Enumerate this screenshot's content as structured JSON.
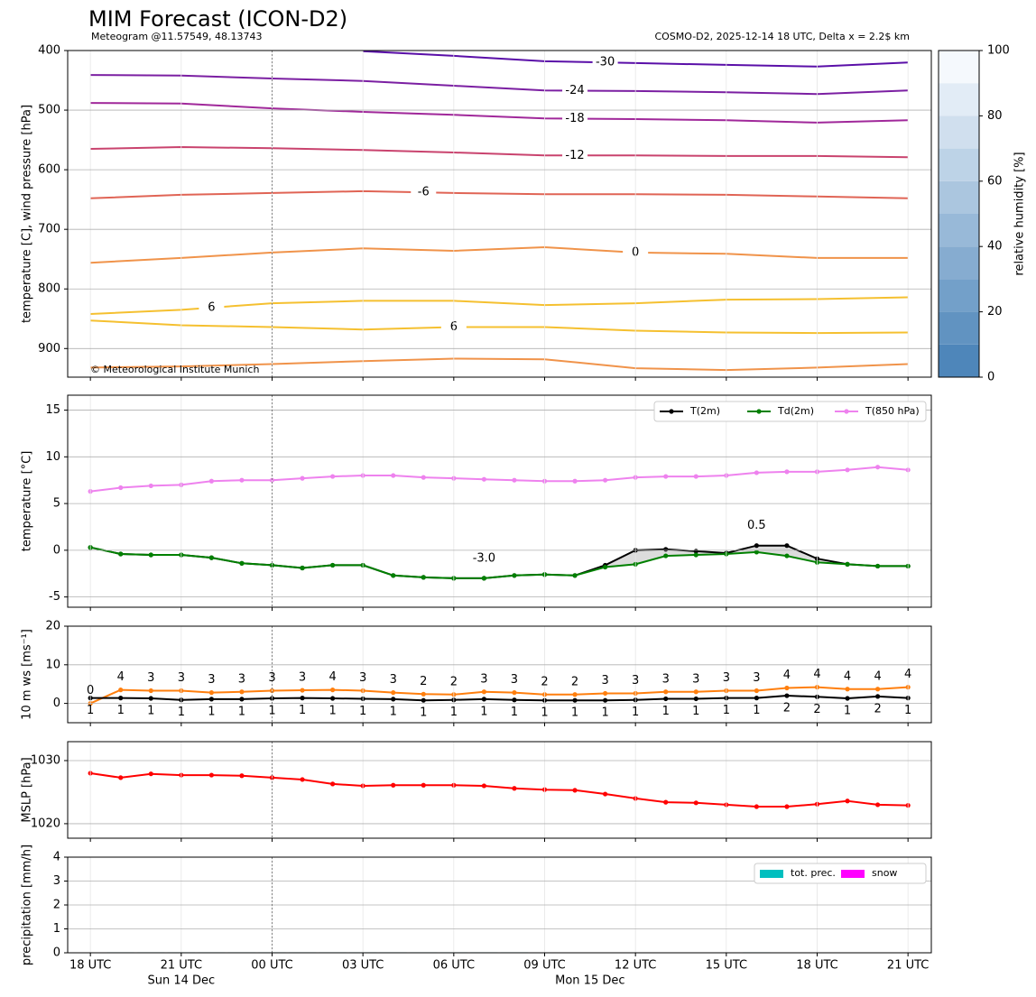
{
  "chart_data": [
    {
      "type": "contour",
      "title": "MIM Forecast (ICON-D2)",
      "subtitle": "Meteogram @11.57549, 48.13743",
      "info": "COSMO-D2, 2025-12-14 18 UTC, Delta x = 2.2$ km",
      "credit": "© Meteorological Institute Munich",
      "ylabel": "temperature [C], wind pressure [hPa]",
      "xlim": [
        -0.75,
        27.77
      ],
      "xticks": [
        0,
        3,
        6,
        9,
        12,
        15,
        18,
        21,
        24,
        27
      ],
      "ylim": [
        400,
        948
      ],
      "y_inverted": true,
      "yticks": [
        400,
        500,
        600,
        700,
        800,
        900
      ],
      "grid": true,
      "vline": 6,
      "contours": [
        {
          "level": -30,
          "color": "#5a0fa8",
          "x": [
            9,
            12,
            15,
            18,
            21,
            24,
            27
          ],
          "values": [
            401,
            409,
            418,
            421,
            424,
            427,
            420
          ]
        },
        {
          "level": -24,
          "color": "#7b1fa2",
          "x": [
            0,
            3,
            6,
            9,
            12,
            15,
            18,
            21,
            24,
            27
          ],
          "values": [
            441,
            442,
            447,
            451,
            459,
            467,
            468,
            470,
            473,
            467
          ]
        },
        {
          "level": -18,
          "color": "#a0289a",
          "x": [
            0,
            3,
            6,
            9,
            12,
            15,
            18,
            21,
            24,
            27
          ],
          "values": [
            488,
            489,
            497,
            503,
            508,
            514,
            515,
            517,
            521,
            517
          ]
        },
        {
          "level": -12,
          "color": "#c9436e",
          "x": [
            0,
            3,
            6,
            9,
            12,
            15,
            18,
            21,
            24,
            27
          ],
          "values": [
            565,
            562,
            564,
            567,
            571,
            576,
            576,
            577,
            577,
            579
          ]
        },
        {
          "level": -6,
          "color": "#e06455",
          "x": [
            0,
            3,
            6,
            9,
            12,
            15,
            18,
            21,
            24,
            27
          ],
          "values": [
            648,
            642,
            639,
            636,
            639,
            641,
            641,
            642,
            645,
            648
          ]
        },
        {
          "level": 0,
          "color": "#f0934a",
          "x": [
            0,
            3,
            6,
            9,
            12,
            15,
            18,
            21,
            24,
            27
          ],
          "values": [
            756,
            748,
            739,
            732,
            736,
            730,
            739,
            741,
            748,
            748
          ]
        },
        {
          "level": 6,
          "color": "#f5c030",
          "x": [
            0,
            3,
            6,
            9,
            12,
            15,
            18,
            21,
            24,
            27
          ],
          "values": [
            842,
            835,
            824,
            820,
            820,
            827,
            824,
            818,
            817,
            814
          ]
        },
        {
          "level": 6,
          "color": "#f5c030",
          "x": [
            0,
            3,
            6,
            9,
            12,
            15,
            18,
            21,
            24,
            27
          ],
          "values": [
            853,
            861,
            864,
            868,
            864,
            864,
            870,
            873,
            874,
            873
          ]
        },
        {
          "level": 0,
          "color": "#f0934a",
          "x": [
            0,
            3,
            6,
            9,
            12,
            15,
            18,
            21,
            24,
            27
          ],
          "values": [
            932,
            930,
            926,
            921,
            917,
            918,
            933,
            936,
            932,
            926
          ]
        }
      ],
      "colorbar": {
        "label": "relative humidity [%]",
        "lim": [
          0,
          100
        ],
        "ticks": [
          0,
          20,
          40,
          60,
          80,
          100
        ],
        "levels": [
          0,
          10,
          20,
          30,
          40,
          50,
          60,
          70,
          80,
          90,
          100
        ],
        "colors": [
          "#4e86ba",
          "#f5f9fd"
        ]
      }
    },
    {
      "type": "line",
      "ylabel": "temperature [°C]",
      "xlim": [
        -0.75,
        27.77
      ],
      "xticks": [
        0,
        3,
        6,
        9,
        12,
        15,
        18,
        21,
        24,
        27
      ],
      "ylim": [
        -6.1,
        16.6
      ],
      "yticks": [
        -5,
        0,
        5,
        10,
        15
      ],
      "grid": true,
      "vline": 6,
      "x": [
        0,
        1,
        2,
        3,
        4,
        5,
        6,
        7,
        8,
        9,
        10,
        11,
        12,
        13,
        14,
        15,
        16,
        17,
        18,
        19,
        20,
        21,
        22,
        23,
        24,
        25,
        26,
        27
      ],
      "series": [
        {
          "name": "T(2m)",
          "color": "#000000",
          "values": [
            0.3,
            -0.4,
            -0.5,
            -0.5,
            -0.8,
            -1.4,
            -1.6,
            -1.9,
            -1.6,
            -1.6,
            -2.7,
            -2.9,
            -3.0,
            -3.0,
            -2.7,
            -2.6,
            -2.7,
            -1.6,
            0.0,
            0.1,
            -0.1,
            -0.3,
            0.5,
            0.5,
            -0.9,
            -1.5,
            -1.7,
            -1.7
          ]
        },
        {
          "name": "Td(2m)",
          "color": "#008000",
          "values": [
            0.3,
            -0.4,
            -0.5,
            -0.5,
            -0.8,
            -1.4,
            -1.6,
            -1.9,
            -1.6,
            -1.6,
            -2.7,
            -2.9,
            -3.0,
            -3.0,
            -2.7,
            -2.6,
            -2.7,
            -1.8,
            -1.5,
            -0.6,
            -0.5,
            -0.4,
            -0.2,
            -0.6,
            -1.3,
            -1.5,
            -1.7,
            -1.7
          ]
        },
        {
          "name": "T(850 hPa)",
          "color": "#ee82ee",
          "values": [
            6.3,
            6.7,
            6.9,
            7.0,
            7.4,
            7.5,
            7.5,
            7.7,
            7.9,
            8.0,
            8.0,
            7.8,
            7.7,
            7.6,
            7.5,
            7.4,
            7.4,
            7.5,
            7.8,
            7.9,
            7.9,
            8.0,
            8.3,
            8.4,
            8.4,
            8.6,
            8.9,
            8.6
          ]
        }
      ],
      "fill_between": {
        "series": [
          0,
          1
        ],
        "color": "#dcdcdc"
      },
      "legend": "upper right",
      "annotations": [
        {
          "value": -3,
          "label": "-3.0",
          "x": 13,
          "color": "#0000ff"
        },
        {
          "value": 0.5,
          "x": 22,
          "color": "#ff0000"
        }
      ]
    },
    {
      "type": "line",
      "ylabel": "10 m ws [ms⁻¹]",
      "xlim": [
        -0.75,
        27.77
      ],
      "xticks": [
        0,
        3,
        6,
        9,
        12,
        15,
        18,
        21,
        24,
        27
      ],
      "ylim": [
        -5,
        20
      ],
      "yticks": [
        0,
        10,
        20
      ],
      "grid": true,
      "vline": 6,
      "x": [
        0,
        1,
        2,
        3,
        4,
        5,
        6,
        7,
        8,
        9,
        10,
        11,
        12,
        13,
        14,
        15,
        16,
        17,
        18,
        19,
        20,
        21,
        22,
        23,
        24,
        25,
        26,
        27
      ],
      "series": [
        {
          "color": "#ff7f0e",
          "values": [
            0,
            3.5,
            3.3,
            3.3,
            2.8,
            3.0,
            3.3,
            3.4,
            3.5,
            3.3,
            2.8,
            2.4,
            2.3,
            3.0,
            2.8,
            2.3,
            2.3,
            2.6,
            2.6,
            3.0,
            3.0,
            3.3,
            3.3,
            4.0,
            4.2,
            3.7,
            3.7,
            4.2
          ],
          "value_labels": [
            "0",
            "4",
            "3",
            "3",
            "3",
            "3",
            "3",
            "3",
            "4",
            "3",
            "3",
            "2",
            "2",
            "3",
            "3",
            "2",
            "2",
            "3",
            "3",
            "3",
            "3",
            "3",
            "3",
            "4",
            "4",
            "4",
            "4",
            "4"
          ]
        },
        {
          "color": "#000000",
          "values": [
            1.4,
            1.4,
            1.3,
            0.9,
            1.1,
            1.1,
            1.3,
            1.4,
            1.3,
            1.2,
            1.1,
            0.8,
            0.9,
            1.1,
            0.9,
            0.8,
            0.8,
            0.8,
            0.9,
            1.2,
            1.2,
            1.4,
            1.4,
            2.0,
            1.7,
            1.3,
            1.8,
            1.4
          ],
          "value_labels": [
            "1",
            "1",
            "1",
            "1",
            "1",
            "1",
            "1",
            "1",
            "1",
            "1",
            "1",
            "1",
            "1",
            "1",
            "1",
            "1",
            "1",
            "1",
            "1",
            "1",
            "1",
            "1",
            "1",
            "2",
            "2",
            "1",
            "2",
            "1"
          ]
        }
      ]
    },
    {
      "type": "line",
      "ylabel": "MSLP [hPa]",
      "xlim": [
        -0.75,
        27.77
      ],
      "xticks": [
        0,
        3,
        6,
        9,
        12,
        15,
        18,
        21,
        24,
        27
      ],
      "ylim": [
        1017.7,
        1033
      ],
      "yticks": [
        1020,
        1030
      ],
      "grid": true,
      "vline": 6,
      "x": [
        0,
        1,
        2,
        3,
        4,
        5,
        6,
        7,
        8,
        9,
        10,
        11,
        12,
        13,
        14,
        15,
        16,
        17,
        18,
        19,
        20,
        21,
        22,
        23,
        24,
        25,
        26,
        27
      ],
      "series": [
        {
          "color": "#ff0000",
          "values": [
            1028.0,
            1027.3,
            1027.9,
            1027.7,
            1027.7,
            1027.6,
            1027.3,
            1027.0,
            1026.3,
            1026.0,
            1026.1,
            1026.1,
            1026.1,
            1026.0,
            1025.6,
            1025.4,
            1025.3,
            1024.7,
            1024.0,
            1023.4,
            1023.3,
            1023.0,
            1022.7,
            1022.7,
            1023.1,
            1023.6,
            1023.0,
            1022.9
          ]
        }
      ]
    },
    {
      "type": "bar",
      "ylabel": "precipitation [mm/h]",
      "xlim": [
        -0.75,
        27.77
      ],
      "xticks": [
        {
          "value": 0,
          "label": "18 UTC"
        },
        {
          "value": 3,
          "label": "21 UTC"
        },
        {
          "value": 6,
          "label": "00 UTC"
        },
        {
          "value": 9,
          "label": "03 UTC"
        },
        {
          "value": 12,
          "label": "06 UTC"
        },
        {
          "value": 15,
          "label": "09 UTC"
        },
        {
          "value": 18,
          "label": "12 UTC"
        },
        {
          "value": 21,
          "label": "15 UTC"
        },
        {
          "value": 24,
          "label": "18 UTC"
        },
        {
          "value": 27,
          "label": "21 UTC"
        }
      ],
      "date_labels": [
        {
          "value": 3,
          "label": "Sun 14 Dec"
        },
        {
          "value": 16.5,
          "label": "Mon 15 Dec"
        }
      ],
      "ylim": [
        0,
        4
      ],
      "yticks": [
        0,
        1,
        2,
        3,
        4
      ],
      "grid": true,
      "vline": 6,
      "x": [
        0,
        1,
        2,
        3,
        4,
        5,
        6,
        7,
        8,
        9,
        10,
        11,
        12,
        13,
        14,
        15,
        16,
        17,
        18,
        19,
        20,
        21,
        22,
        23,
        24,
        25,
        26,
        27
      ],
      "series": [
        {
          "name": "tot. prec.",
          "color": "#00bfbf",
          "values": [
            0,
            0.02,
            0.02,
            0.02,
            0.02,
            0.02,
            0.02,
            0.02,
            0.02,
            0.02,
            0.02,
            0.02,
            0.02,
            0.02,
            0.02,
            0,
            0,
            0,
            0,
            0,
            0,
            0,
            0.02,
            0,
            0,
            0,
            0,
            0
          ]
        },
        {
          "name": "snow",
          "color": "#ff00ff",
          "values": [
            0,
            0,
            0,
            0,
            0,
            0,
            0,
            0,
            0,
            0,
            0,
            0,
            0,
            0,
            0,
            0,
            0,
            0,
            0,
            0,
            0,
            0,
            0,
            0,
            0,
            0,
            0,
            0
          ]
        }
      ],
      "legend": "upper right"
    }
  ]
}
